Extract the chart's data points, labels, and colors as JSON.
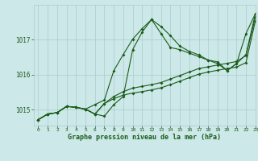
{
  "xlabel": "Graphe pression niveau de la mer (hPa)",
  "xlim": [
    -0.5,
    23
  ],
  "ylim": [
    1014.55,
    1018.0
  ],
  "yticks": [
    1015,
    1016,
    1017
  ],
  "xticks": [
    0,
    1,
    2,
    3,
    4,
    5,
    6,
    7,
    8,
    9,
    10,
    11,
    12,
    13,
    14,
    15,
    16,
    17,
    18,
    19,
    20,
    21,
    22,
    23
  ],
  "bg_color": "#cce8e8",
  "grid_color": "#aacccc",
  "line_color": "#1a5c1a",
  "line1_x": [
    0,
    1,
    2,
    3,
    4,
    5,
    6,
    7,
    8,
    9,
    10,
    11,
    12,
    13,
    14,
    15,
    16,
    17,
    18,
    19,
    20,
    21,
    22,
    23
  ],
  "line1_y": [
    1014.72,
    1014.88,
    1014.92,
    1015.1,
    1015.07,
    1015.02,
    1014.88,
    1015.18,
    1015.32,
    1015.42,
    1015.48,
    1015.52,
    1015.57,
    1015.63,
    1015.72,
    1015.82,
    1015.92,
    1016.02,
    1016.08,
    1016.13,
    1016.18,
    1016.22,
    1016.35,
    1017.55
  ],
  "line2_x": [
    0,
    1,
    2,
    3,
    4,
    5,
    6,
    7,
    8,
    9,
    10,
    11,
    12,
    13,
    14,
    15,
    16,
    17,
    18,
    19,
    20,
    21,
    22,
    23
  ],
  "line2_y": [
    1014.72,
    1014.88,
    1014.92,
    1015.1,
    1015.07,
    1015.02,
    1014.88,
    1015.18,
    1015.38,
    1015.52,
    1015.62,
    1015.67,
    1015.72,
    1015.78,
    1015.88,
    1015.98,
    1016.08,
    1016.18,
    1016.23,
    1016.28,
    1016.33,
    1016.38,
    1016.55,
    1017.65
  ],
  "line3_x": [
    0,
    1,
    2,
    3,
    4,
    5,
    6,
    7,
    8,
    9,
    10,
    11,
    12,
    13,
    14,
    15,
    16,
    17,
    18,
    19,
    20,
    21,
    22,
    23
  ],
  "line3_y": [
    1014.72,
    1014.88,
    1014.92,
    1015.1,
    1015.07,
    1015.02,
    1015.15,
    1015.28,
    1016.12,
    1016.58,
    1017.02,
    1017.32,
    1017.58,
    1017.18,
    1016.78,
    1016.72,
    1016.62,
    1016.52,
    1016.42,
    1016.37,
    1016.12,
    1016.32,
    1016.58,
    1017.75
  ],
  "line4_x": [
    0,
    1,
    2,
    3,
    4,
    5,
    6,
    7,
    8,
    9,
    10,
    11,
    12,
    13,
    14,
    15,
    16,
    17,
    18,
    19,
    20,
    21,
    22,
    23
  ],
  "line4_y": [
    1014.72,
    1014.88,
    1014.92,
    1015.1,
    1015.07,
    1015.02,
    1014.88,
    1014.82,
    1015.15,
    1015.38,
    1016.72,
    1017.22,
    1017.58,
    1017.38,
    1017.12,
    1016.82,
    1016.67,
    1016.57,
    1016.42,
    1016.32,
    1016.12,
    1016.32,
    1017.18,
    1017.75
  ]
}
